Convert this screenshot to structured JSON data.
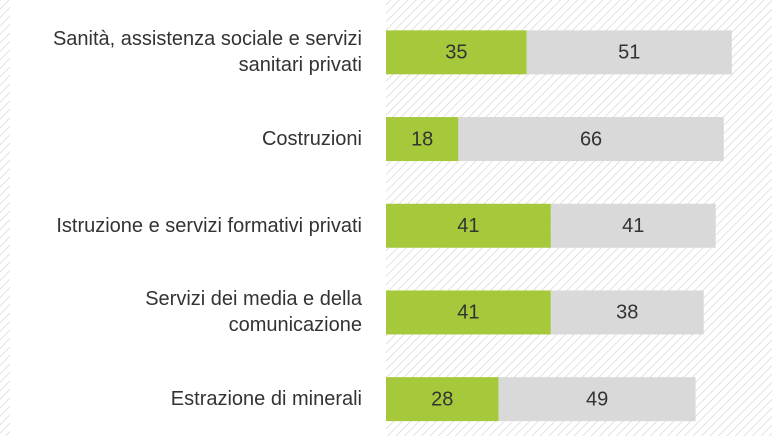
{
  "chart_data": {
    "type": "stacked-barh",
    "categories": [
      "Sanità, assistenza sociale e servizi\nsanitari privati",
      "Costruzioni",
      "Istruzione e servizi formativi privati",
      "Servizi dei media e della\ncomunicazione",
      "Estrazione di minerali"
    ],
    "series": [
      {
        "color": "#a5c93a",
        "values": [
          35,
          18,
          41,
          41,
          28
        ]
      },
      {
        "color": "#d9d9d9",
        "values": [
          51,
          66,
          41,
          38,
          49
        ]
      }
    ],
    "xlim": [
      0,
      96
    ]
  }
}
